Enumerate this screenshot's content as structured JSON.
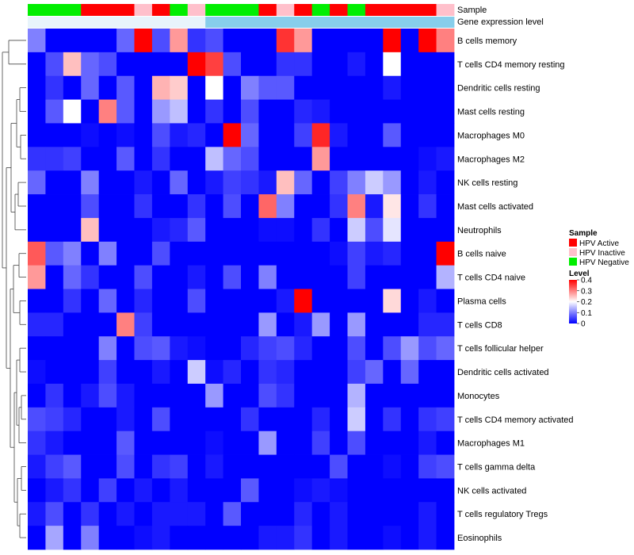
{
  "chart_data": {
    "type": "heatmap",
    "title": "",
    "annotation_tracks": [
      "Sample",
      "Gene expression level"
    ],
    "sample_groups": [
      "HPV Negative",
      "HPV Negative",
      "HPV Negative",
      "HPV Active",
      "HPV Active",
      "HPV Active",
      "HPV Inactive",
      "HPV Active",
      "HPV Negative",
      "HPV Inactive",
      "HPV Negative",
      "HPV Negative",
      "HPV Negative",
      "HPV Active",
      "HPV Inactive",
      "HPV Active",
      "HPV Negative",
      "HPV Active",
      "HPV Negative",
      "HPV Active",
      "HPV Active",
      "HPV Active",
      "HPV Active",
      "HPV Inactive"
    ],
    "gene_expression_levels": [
      "low",
      "low",
      "low",
      "low",
      "low",
      "low",
      "low",
      "low",
      "low",
      "low",
      "high",
      "high",
      "high",
      "high",
      "high",
      "high",
      "high",
      "high",
      "high",
      "high",
      "high",
      "high",
      "high",
      "high"
    ],
    "rows": [
      "B cells memory",
      "T cells CD4 memory resting",
      "Dendritic cells resting",
      "Mast cells resting",
      "Macrophages M0",
      "Macrophages M2",
      "NK cells resting",
      "Mast cells activated",
      "Neutrophils",
      "B cells naive",
      "T cells CD4 naive",
      "Plasma cells",
      "T cells CD8",
      "T cells follicular helper",
      "Dendritic cells activated",
      "Monocytes",
      "T cells CD4 memory activated",
      "Macrophages M1",
      "T cells gamma delta",
      "NK cells activated",
      "T cells regulatory  Tregs",
      "Eosinophils"
    ],
    "values": [
      [
        0.1,
        0,
        0,
        0,
        0,
        0.08,
        0.4,
        0.06,
        0.28,
        0.04,
        0.06,
        0,
        0,
        0,
        0.36,
        0.28,
        0,
        0,
        0,
        0,
        0.4,
        0,
        0.4,
        0.3
      ],
      [
        0,
        0.06,
        0.25,
        0.08,
        0.06,
        0,
        0,
        0,
        0,
        0.4,
        0.35,
        0.06,
        0,
        0,
        0.04,
        0.04,
        0,
        0,
        0.02,
        0,
        0.2,
        0,
        0,
        0
      ],
      [
        0,
        0.04,
        0,
        0.08,
        0,
        0.07,
        0,
        0.26,
        0.24,
        0,
        0.2,
        0,
        0.1,
        0.07,
        0.07,
        0,
        0,
        0,
        0,
        0,
        0.02,
        0,
        0,
        0
      ],
      [
        0,
        0.07,
        0.2,
        0,
        0.3,
        0.07,
        0,
        0.12,
        0.15,
        0,
        0.04,
        0,
        0.06,
        0,
        0,
        0.03,
        0.02,
        0,
        0,
        0,
        0,
        0,
        0,
        0
      ],
      [
        0,
        0,
        0,
        0.01,
        0,
        0.01,
        0,
        0.06,
        0.02,
        0.03,
        0,
        0.4,
        0.08,
        0,
        0,
        0.05,
        0.37,
        0.02,
        0,
        0,
        0.07,
        0,
        0,
        0
      ],
      [
        0.04,
        0.04,
        0.05,
        0,
        0,
        0.07,
        0,
        0.04,
        0,
        0,
        0.15,
        0.08,
        0.06,
        0,
        0,
        0,
        0.28,
        0,
        0,
        0,
        0,
        0,
        0.01,
        0.02
      ],
      [
        0.08,
        0,
        0,
        0.1,
        0,
        0,
        0.02,
        0,
        0.08,
        0,
        0.02,
        0.05,
        0.04,
        0.02,
        0.25,
        0.08,
        0,
        0.05,
        0.1,
        0.16,
        0.12,
        0,
        0.02,
        0
      ],
      [
        0,
        0,
        0,
        0.06,
        0,
        0,
        0.04,
        0,
        0,
        0.04,
        0,
        0.06,
        0,
        0.32,
        0.1,
        0,
        0,
        0.04,
        0.3,
        0.02,
        0.22,
        0,
        0.04,
        0
      ],
      [
        0,
        0,
        0,
        0.25,
        0,
        0,
        0,
        0.02,
        0.03,
        0.07,
        0,
        0,
        0,
        0.01,
        0.01,
        0,
        0.04,
        0,
        0.16,
        0.06,
        0.18,
        0,
        0,
        0
      ],
      [
        0.33,
        0.07,
        0.1,
        0,
        0.1,
        0,
        0,
        0.06,
        0,
        0,
        0,
        0,
        0,
        0,
        0,
        0,
        0,
        0.01,
        0.05,
        0.02,
        0.03,
        0,
        0,
        0.4
      ],
      [
        0.28,
        0,
        0.08,
        0.04,
        0,
        0,
        0.06,
        0,
        0,
        0.02,
        0,
        0.06,
        0,
        0.1,
        0,
        0,
        0,
        0,
        0.05,
        0,
        0,
        0,
        0,
        0.14
      ],
      [
        0,
        0,
        0.04,
        0,
        0.08,
        0,
        0.03,
        0,
        0,
        0.06,
        0,
        0,
        0,
        0,
        0.02,
        0.4,
        0,
        0,
        0,
        0,
        0.23,
        0,
        0.02,
        0
      ],
      [
        0.03,
        0.03,
        0,
        0,
        0,
        0.3,
        0.05,
        0,
        0,
        0,
        0,
        0,
        0,
        0.12,
        0,
        0.02,
        0.12,
        0,
        0.12,
        0,
        0,
        0,
        0.03,
        0.03
      ],
      [
        0,
        0,
        0,
        0,
        0.1,
        0,
        0.06,
        0.07,
        0.02,
        0.01,
        0,
        0,
        0.03,
        0.05,
        0.06,
        0.03,
        0,
        0,
        0.06,
        0,
        0.06,
        0.12,
        0.06,
        0.08
      ],
      [
        0.01,
        0,
        0,
        0,
        0.05,
        0,
        0,
        0.02,
        0,
        0.16,
        0.01,
        0.03,
        0,
        0.04,
        0.03,
        0,
        0,
        0,
        0.05,
        0.08,
        0,
        0.08,
        0,
        0
      ],
      [
        0,
        0.04,
        0,
        0.02,
        0.06,
        0.02,
        0,
        0,
        0,
        0,
        0.12,
        0,
        0,
        0.06,
        0.04,
        0,
        0,
        0,
        0.14,
        0,
        0,
        0,
        0,
        0
      ],
      [
        0.06,
        0.05,
        0.03,
        0,
        0,
        0.02,
        0,
        0.06,
        0,
        0,
        0,
        0,
        0.04,
        0,
        0,
        0,
        0.03,
        0,
        0.16,
        0,
        0.04,
        0,
        0.04,
        0.05
      ],
      [
        0.04,
        0.02,
        0,
        0,
        0,
        0.07,
        0,
        0,
        0,
        0,
        0.01,
        0,
        0,
        0.12,
        0,
        0,
        0.05,
        0,
        0.06,
        0,
        0,
        0,
        0.02,
        0
      ],
      [
        0.02,
        0.05,
        0.07,
        0,
        0,
        0.06,
        0,
        0.04,
        0.05,
        0,
        0.02,
        0,
        0,
        0,
        0,
        0,
        0,
        0.06,
        0,
        0,
        0.01,
        0,
        0.05,
        0.06
      ],
      [
        0,
        0.02,
        0.04,
        0,
        0.05,
        0,
        0.02,
        0,
        0.02,
        0,
        0,
        0,
        0.07,
        0,
        0,
        0.01,
        0.02,
        0.01,
        0,
        0,
        0,
        0,
        0,
        0
      ],
      [
        0.02,
        0.06,
        0,
        0.04,
        0,
        0.02,
        0,
        0.02,
        0.02,
        0.02,
        0,
        0.07,
        0,
        0,
        0,
        0.03,
        0,
        0.02,
        0,
        0,
        0,
        0,
        0.02,
        0
      ],
      [
        0,
        0.13,
        0,
        0.1,
        0,
        0,
        0.01,
        0.02,
        0,
        0,
        0,
        0,
        0,
        0.02,
        0.02,
        0.04,
        0,
        0.02,
        0,
        0,
        0.01,
        0,
        0.02,
        0
      ]
    ],
    "xlabel": "",
    "ylabel": "",
    "legend_position": "right",
    "legend_sample": {
      "title": "Sample",
      "items": [
        {
          "label": "HPV Active",
          "color": "#ff0000"
        },
        {
          "label": "HPV Inactive",
          "color": "#ffc0cb"
        },
        {
          "label": "HPV Negative",
          "color": "#00ee00"
        }
      ]
    },
    "legend_level": {
      "title": "Level",
      "range": [
        0,
        0.4
      ],
      "ticks": [
        "0.4",
        "0.3",
        "0.2",
        "0.1",
        "0"
      ],
      "tick_values": [
        0.4,
        0.3,
        0.2,
        0.1,
        0
      ]
    },
    "colors": {
      "low": "#0000ff",
      "mid": "#ffffff",
      "high": "#ff0000",
      "expr_low": "#e8f4fb",
      "expr_high": "#87ceeb"
    }
  }
}
